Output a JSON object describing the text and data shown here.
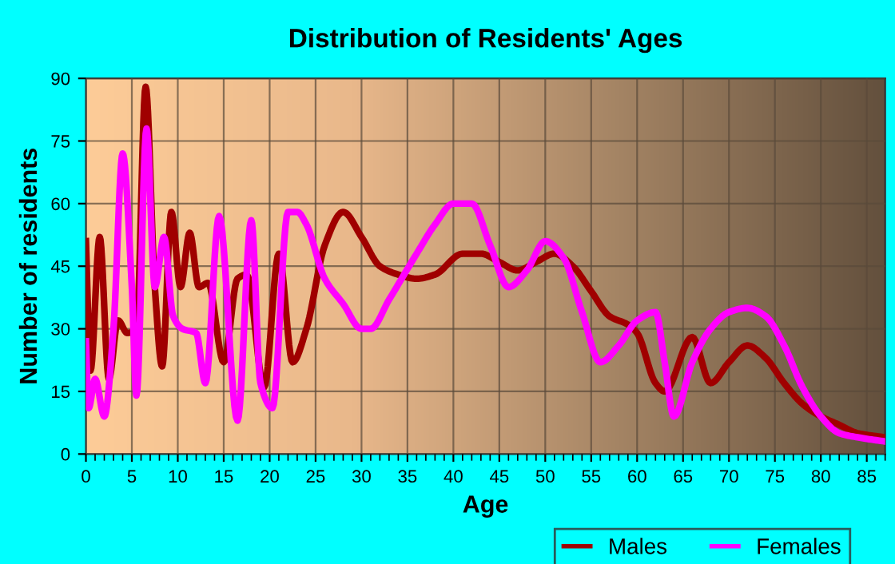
{
  "chart_data": {
    "type": "line",
    "title": "Distribution of Residents' Ages",
    "xlabel": "Age",
    "ylabel": "Number of residents",
    "xlim": [
      0,
      87
    ],
    "xticks": [
      0,
      5,
      10,
      15,
      20,
      25,
      30,
      35,
      40,
      45,
      50,
      55,
      60,
      65,
      70,
      75,
      80,
      85
    ],
    "ylim": [
      0,
      90
    ],
    "yticks": [
      0,
      15,
      30,
      45,
      60,
      75,
      90
    ],
    "grid": true,
    "legend": "bottom right",
    "marker": "none",
    "line_style": "solid",
    "series": [
      {
        "name": "Males",
        "color": "#a00000",
        "x": [
          0,
          0.5,
          1.5,
          2.5,
          3.5,
          4.5,
          5.5,
          6.5,
          7.5,
          8.3,
          9.3,
          10.3,
          11.3,
          12.3,
          13.3,
          15,
          16.5,
          17.5,
          19.4,
          21,
          22.5,
          24,
          26,
          28,
          30,
          32,
          34,
          36,
          38,
          41,
          43,
          45,
          47,
          49,
          51,
          53,
          55,
          57,
          59,
          60,
          62,
          63,
          66,
          68,
          70,
          72,
          74,
          76,
          78,
          80,
          82,
          84,
          87
        ],
        "values": [
          51,
          20,
          52,
          18,
          32,
          29,
          30,
          88,
          40,
          21,
          58,
          40,
          53,
          40,
          41,
          22,
          42,
          43,
          16,
          48,
          22,
          30,
          50,
          58,
          52,
          45,
          43,
          42,
          43,
          48,
          48,
          46,
          44,
          46,
          48,
          45,
          39,
          33,
          31,
          29,
          17,
          15,
          28,
          17,
          22,
          26,
          23,
          17,
          12,
          9,
          7,
          5,
          4
        ]
      },
      {
        "name": "Females",
        "color": "#ff00ff",
        "x": [
          0,
          0.3,
          1,
          2,
          3,
          4,
          5,
          5.5,
          6.6,
          7.5,
          8.5,
          9.5,
          10.5,
          12,
          13,
          14.5,
          16.5,
          18,
          19,
          20.3,
          22,
          23,
          24,
          26,
          28,
          30,
          31,
          33,
          36,
          38,
          40,
          42,
          44,
          46,
          48,
          50,
          52,
          54,
          56,
          58,
          60,
          62,
          63,
          64,
          66,
          68,
          70,
          72,
          74,
          76,
          78,
          80,
          82,
          84,
          87
        ],
        "values": [
          27,
          11,
          18,
          9,
          30,
          72,
          40,
          14,
          78,
          40,
          52,
          33,
          30,
          29,
          17,
          57,
          8,
          56,
          17,
          11,
          58,
          58,
          55,
          42,
          36,
          30,
          30,
          37,
          48,
          55,
          60,
          60,
          50,
          40,
          44,
          51,
          47,
          34,
          22,
          26,
          32,
          34,
          22,
          9,
          22,
          30,
          34,
          35,
          33,
          26,
          16,
          9,
          5,
          4,
          3
        ]
      }
    ]
  }
}
